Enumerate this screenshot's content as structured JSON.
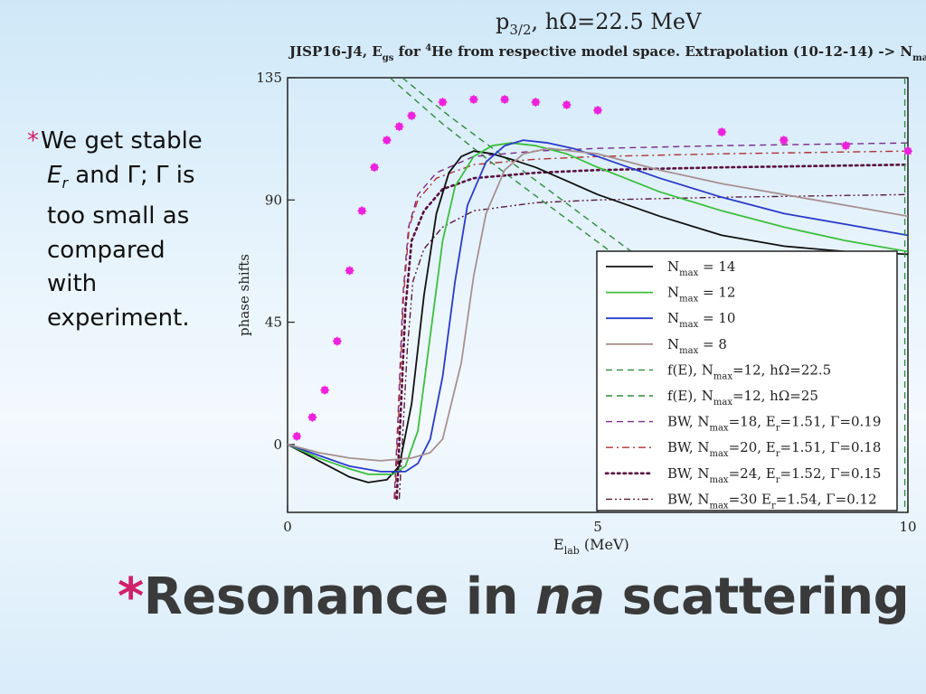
{
  "bullet": {
    "line1": "We get stable",
    "er_symbol": "E",
    "er_sub": "r",
    "line2_rest": " and Γ; Γ is",
    "line3": "too small as",
    "line4": "compared",
    "line5": "with",
    "line6": "experiment."
  },
  "slide_title": {
    "star": "*",
    "part1": "Resonance in ",
    "part2": "na",
    "part3": " scattering"
  },
  "chart_data": {
    "type": "line",
    "title": {
      "p": "p",
      "sub": "3/2",
      "rest": ", hΩ=22.5 MeV"
    },
    "subtitle": {
      "part1": "JISP16-J4,  E",
      "sub1": "gs",
      "part2": " for ",
      "sup": "4",
      "part3": "He from respective model space. Extrapolation (10-12-14) -> N",
      "sub2": "max"
    },
    "xlabel": {
      "main": "E",
      "sub": "lab",
      "rest": " (MeV)"
    },
    "ylabel": "phase shifts",
    "xlim": [
      0,
      10
    ],
    "ylim": [
      -25,
      135
    ],
    "xticks": [
      0,
      5,
      10
    ],
    "yticks": [
      0,
      45,
      90,
      135
    ],
    "colors": {
      "n14": "#111111",
      "n12": "#3cbf3c",
      "n10": "#2a3ac8",
      "n8": "#a89090",
      "fe225": "#2e8b3a",
      "fe25": "#2e8b3a",
      "bw18": "#7a2a8a",
      "bw20": "#b03030",
      "bw24": "#5a1040",
      "bw30": "#5a1a3a",
      "experiment": "#ee22dd"
    },
    "series": [
      {
        "key": "n14",
        "style": "solid",
        "label_pre": "N",
        "label_sub": "max",
        "label_post": " = 14",
        "x": [
          0,
          0.5,
          1.0,
          1.3,
          1.6,
          1.8,
          2.0,
          2.2,
          2.4,
          2.6,
          2.8,
          3.0,
          3.3,
          3.6,
          4.0,
          4.5,
          5.0,
          6.0,
          7.0,
          8.0,
          9.0,
          10.0
        ],
        "y": [
          0,
          -6,
          -12,
          -14,
          -13,
          -8,
          15,
          55,
          85,
          100,
          106,
          108,
          107,
          105,
          102,
          97,
          92,
          84,
          77,
          73,
          71,
          70
        ]
      },
      {
        "key": "n12",
        "style": "solid",
        "label_pre": "N",
        "label_sub": "max",
        "label_post": " = 12",
        "x": [
          0,
          0.5,
          1.0,
          1.3,
          1.7,
          1.9,
          2.1,
          2.3,
          2.5,
          2.7,
          3.0,
          3.3,
          3.6,
          4.0,
          4.5,
          5.0,
          6.0,
          7.0,
          8.0,
          9.0,
          10.0
        ],
        "y": [
          0,
          -5,
          -9,
          -11,
          -11,
          -8,
          5,
          40,
          75,
          95,
          106,
          110,
          111,
          110,
          107,
          102,
          93,
          86,
          80,
          75,
          71
        ]
      },
      {
        "key": "n10",
        "style": "solid",
        "label_pre": "N",
        "label_sub": "max",
        "label_post": " = 10",
        "x": [
          0,
          0.5,
          1.0,
          1.5,
          1.9,
          2.1,
          2.3,
          2.5,
          2.7,
          2.9,
          3.2,
          3.5,
          3.8,
          4.2,
          4.6,
          5.0,
          6.0,
          7.0,
          8.0,
          9.0,
          10.0
        ],
        "y": [
          0,
          -4,
          -8,
          -10,
          -10,
          -7,
          2,
          25,
          60,
          88,
          104,
          110,
          112,
          111,
          109,
          106,
          98,
          91,
          85,
          81,
          77
        ]
      },
      {
        "key": "n8",
        "style": "solid",
        "label_pre": "N",
        "label_sub": "max",
        "label_post": " =   8",
        "x": [
          0,
          0.5,
          1.0,
          1.5,
          2.0,
          2.3,
          2.5,
          2.8,
          3.0,
          3.2,
          3.5,
          3.8,
          4.2,
          4.6,
          5.0,
          6.0,
          7.0,
          8.0,
          9.0,
          10.0
        ],
        "y": [
          0,
          -3,
          -5,
          -6,
          -5,
          -3,
          2,
          30,
          62,
          85,
          101,
          107,
          109,
          108,
          107,
          101,
          96,
          92,
          88,
          84
        ]
      },
      {
        "key": "fe225",
        "style": "dash",
        "label_pre": "f(E), N",
        "label_sub": "max",
        "label_post": "=12, hΩ=22.5",
        "x": [
          1.65,
          2.5,
          3.5,
          4.5,
          5.5
        ],
        "y": [
          135,
          118,
          100,
          83,
          66
        ]
      },
      {
        "key": "fe25",
        "style": "dash",
        "label_pre": "f(E), N",
        "label_sub": "max",
        "label_post": "=12, hΩ=25",
        "x": [
          1.85,
          2.6,
          3.6,
          4.6,
          5.6
        ],
        "y": [
          135,
          121,
          104,
          87,
          70
        ]
      },
      {
        "key": "bw18",
        "style": "dash",
        "label_pre": "BW, N",
        "label_sub": "max",
        "label_post": "=18, E",
        "label_sub2": "r",
        "label_post2": "=1.51, Γ=0.19",
        "x": [
          1.72,
          1.78,
          1.86,
          1.95,
          2.1,
          2.4,
          3.0,
          4.0,
          5.0,
          7.0,
          10.0
        ],
        "y": [
          -20,
          10,
          55,
          80,
          92,
          100,
          106,
          108,
          109,
          110,
          111
        ]
      },
      {
        "key": "bw20",
        "style": "dashdot",
        "label_pre": "BW, N",
        "label_sub": "max",
        "label_post": "=20, E",
        "label_sub2": "r",
        "label_post2": "=1.51, Γ=0.18",
        "x": [
          1.73,
          1.79,
          1.87,
          1.96,
          2.1,
          2.4,
          3.0,
          4.0,
          5.0,
          7.0,
          10.0
        ],
        "y": [
          -20,
          10,
          55,
          80,
          90,
          98,
          103,
          105,
          106,
          107,
          108
        ]
      },
      {
        "key": "bw24",
        "style": "dot",
        "label_pre": "BW, N",
        "label_sub": "max",
        "label_post": "=24, E",
        "label_sub2": "r",
        "label_post2": "=1.52, Γ=0.15",
        "x": [
          1.76,
          1.82,
          1.9,
          2.0,
          2.2,
          2.5,
          3.0,
          4.0,
          5.0,
          7.0,
          10.0
        ],
        "y": [
          -20,
          10,
          50,
          75,
          86,
          94,
          98,
          100,
          101,
          102,
          103
        ]
      },
      {
        "key": "bw30",
        "style": "dashdotdot",
        "label_pre": "BW, N",
        "label_sub": "max",
        "label_post": "=30  E",
        "label_sub2": "r",
        "label_post2": "=1.54, Γ=0.12",
        "x": [
          1.8,
          1.86,
          1.93,
          2.02,
          2.2,
          2.5,
          3.0,
          4.0,
          5.0,
          7.0,
          10.0
        ],
        "y": [
          -20,
          5,
          35,
          60,
          72,
          80,
          86,
          89,
          90,
          91,
          92
        ]
      }
    ],
    "experiment": {
      "x": [
        0.15,
        0.4,
        0.6,
        0.8,
        1.0,
        1.2,
        1.4,
        1.6,
        1.8,
        2.0,
        2.5,
        3.0,
        3.5,
        4.0,
        4.5,
        5.0,
        7.0,
        8.0,
        9.0,
        10.0
      ],
      "y": [
        3,
        10,
        20,
        38,
        64,
        86,
        102,
        112,
        117,
        121,
        126,
        127,
        127,
        126,
        125,
        123,
        115,
        112,
        110,
        108
      ]
    },
    "legend_position": "lower-right"
  }
}
